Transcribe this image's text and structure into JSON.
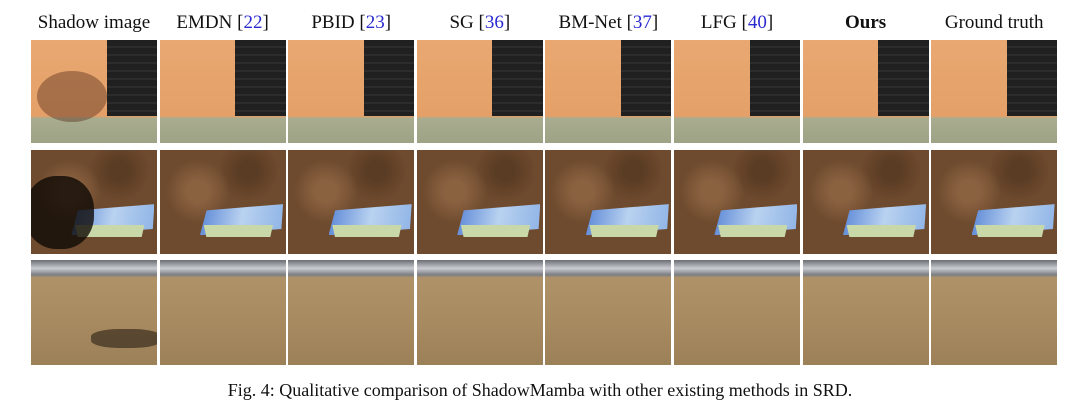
{
  "figure": {
    "columns": [
      {
        "header": [
          "Shadow image"
        ]
      },
      {
        "header": [
          "EMDN [",
          "22",
          "]"
        ]
      },
      {
        "header": [
          "PBID [",
          "23",
          "]"
        ]
      },
      {
        "header": [
          "SG [",
          "36",
          "]"
        ]
      },
      {
        "header": [
          "BM-Net [",
          "37",
          "]"
        ]
      },
      {
        "header": [
          "LFG [",
          "40",
          "]"
        ]
      },
      {
        "header": [
          "Ours"
        ]
      },
      {
        "header": [
          "Ground truth"
        ]
      }
    ],
    "caption": "Fig. 4: Qualitative comparison of ShadowMamba with other existing methods in SRD."
  }
}
